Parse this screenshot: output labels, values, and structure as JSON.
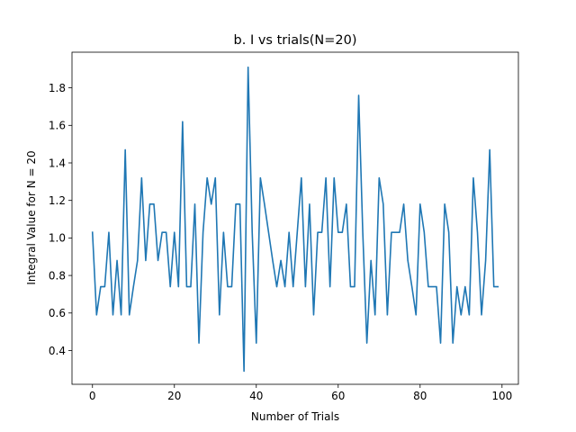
{
  "chart_data": {
    "type": "line",
    "title": "b. I vs trials(N=20)",
    "xlabel": "Number of Trials",
    "ylabel": "Integral Value for N = 20",
    "xlim": [
      -5,
      104
    ],
    "ylim": [
      0.22,
      1.99
    ],
    "x_ticks": [
      0,
      20,
      40,
      60,
      80,
      100
    ],
    "y_ticks": [
      0.4,
      0.6,
      0.8,
      1.0,
      1.2,
      1.4,
      1.6,
      1.8
    ],
    "x_tick_labels": [
      "0",
      "20",
      "40",
      "60",
      "80",
      "100"
    ],
    "y_tick_labels": [
      "0.4",
      "0.6",
      "0.8",
      "1.0",
      "1.2",
      "1.4",
      "1.6",
      "1.8"
    ],
    "grid": false,
    "line_color": "#1f77b4",
    "series": [
      {
        "x": [
          0,
          1,
          2,
          3,
          4,
          5,
          6,
          7,
          8,
          9,
          10,
          11,
          12,
          13,
          14,
          15,
          16,
          17,
          18,
          19,
          20,
          21,
          22,
          23,
          24,
          25,
          26,
          27,
          28,
          29,
          30,
          31,
          32,
          33,
          34,
          35,
          36,
          37,
          38,
          39,
          40,
          41,
          42,
          43,
          44,
          45,
          46,
          47,
          48,
          49,
          50,
          51,
          52,
          53,
          54,
          55,
          56,
          57,
          58,
          59,
          60,
          61,
          62,
          63,
          64,
          65,
          66,
          67,
          68,
          69,
          70,
          71,
          72,
          73,
          74,
          75,
          76,
          77,
          78,
          79,
          80,
          81,
          82,
          83,
          84,
          85,
          86,
          87,
          88,
          89,
          90,
          91,
          92,
          93,
          94,
          95,
          96,
          97,
          98,
          99
        ],
        "y": [
          1.03,
          0.59,
          0.74,
          0.74,
          1.03,
          0.59,
          0.88,
          0.59,
          1.47,
          0.59,
          0.74,
          0.88,
          1.32,
          0.88,
          1.18,
          1.18,
          0.88,
          1.03,
          1.03,
          0.74,
          1.03,
          0.74,
          1.62,
          0.74,
          0.74,
          1.18,
          0.44,
          1.03,
          1.32,
          1.18,
          1.32,
          0.59,
          1.03,
          0.74,
          0.74,
          1.18,
          1.18,
          0.29,
          1.91,
          1.03,
          0.44,
          1.32,
          1.18,
          1.03,
          0.88,
          0.74,
          0.88,
          0.74,
          1.03,
          0.74,
          1.03,
          1.32,
          0.74,
          1.18,
          0.59,
          1.03,
          1.03,
          1.32,
          0.74,
          1.32,
          1.03,
          1.03,
          1.18,
          0.74,
          0.74,
          1.76,
          1.03,
          0.44,
          0.88,
          0.59,
          1.32,
          1.18,
          0.59,
          1.03,
          1.03,
          1.03,
          1.18,
          0.88,
          0.74,
          0.59,
          1.18,
          1.03,
          0.74,
          0.74,
          0.74,
          0.44,
          1.18,
          1.03,
          0.44,
          0.74,
          0.59,
          0.74,
          0.59,
          1.32,
          1.03,
          0.59,
          0.88,
          1.47,
          0.74,
          0.74
        ]
      }
    ]
  }
}
